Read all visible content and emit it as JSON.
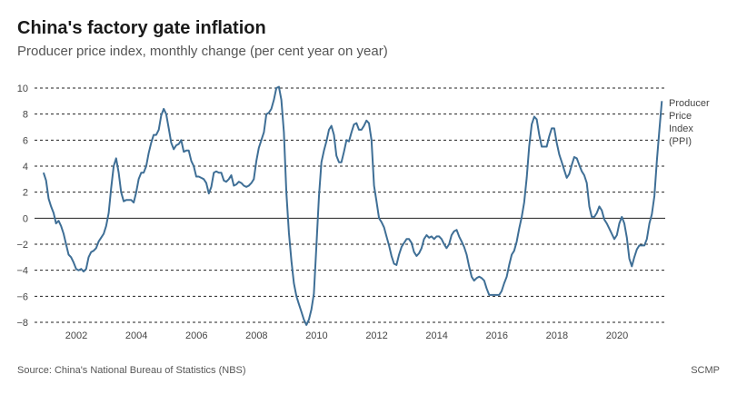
{
  "header": {
    "title": "China's factory gate inflation",
    "subtitle": "Producer price index, monthly change (per cent year on year)"
  },
  "footer": {
    "source": "Source: China's National Bureau of Statistics (NBS)",
    "credit": "SCMP"
  },
  "chart_data": {
    "type": "line",
    "title": "China's factory gate inflation",
    "subtitle": "Producer price index, monthly change (per cent year on year)",
    "xlabel": "",
    "ylabel": "",
    "ylim": [
      -8,
      10
    ],
    "xlim": [
      2001.0,
      2021.33
    ],
    "yticks": [
      10,
      8,
      6,
      4,
      2,
      0,
      -2,
      -4,
      -6,
      -8
    ],
    "ytick_labels": [
      "10",
      "8",
      "6",
      "4",
      "2",
      "0",
      "−2",
      "−4",
      "−6",
      "−8"
    ],
    "xticks": [
      2002,
      2004,
      2006,
      2008,
      2010,
      2012,
      2014,
      2016,
      2018,
      2020
    ],
    "xtick_labels": [
      "2002",
      "2004",
      "2006",
      "2008",
      "2010",
      "2012",
      "2014",
      "2016",
      "2018",
      "2020"
    ],
    "grid": "horizontal-dashed",
    "line_color": "#3f6f96",
    "x_start": "2001-01",
    "frequency": "monthly",
    "series": [
      {
        "name": "Producer Price Index (PPI)",
        "legend_lines": [
          "Producer",
          "Price",
          "Index",
          "(PPI)"
        ],
        "legend_placement": "right-end",
        "values": [
          3.5,
          2.9,
          1.5,
          0.9,
          0.4,
          -0.4,
          -0.2,
          -0.6,
          -1.2,
          -2.0,
          -2.8,
          -3.0,
          -3.4,
          -3.9,
          -4.0,
          -3.9,
          -4.1,
          -3.9,
          -3.0,
          -2.6,
          -2.5,
          -2.3,
          -1.8,
          -1.5,
          -1.2,
          -0.6,
          0.4,
          2.3,
          4.0,
          4.6,
          3.5,
          2.0,
          1.3,
          1.4,
          1.4,
          1.4,
          1.2,
          2.0,
          3.0,
          3.5,
          3.5,
          4.0,
          5.0,
          5.8,
          6.4,
          6.4,
          6.8,
          7.9,
          8.4,
          8.0,
          6.9,
          5.8,
          5.3,
          5.6,
          5.7,
          6.0,
          5.1,
          5.2,
          5.2,
          4.4,
          4.0,
          3.2,
          3.2,
          3.1,
          3.0,
          2.7,
          1.9,
          2.4,
          3.5,
          3.6,
          3.5,
          3.5,
          2.9,
          2.8,
          3.0,
          3.3,
          2.5,
          2.6,
          2.8,
          2.7,
          2.5,
          2.4,
          2.5,
          2.7,
          3.0,
          4.4,
          5.4,
          6.0,
          6.6,
          8.0,
          8.1,
          8.4,
          9.1,
          10.0,
          10.1,
          9.1,
          6.6,
          2.0,
          -1.1,
          -3.3,
          -5.0,
          -6.0,
          -6.6,
          -7.2,
          -7.8,
          -8.2,
          -7.8,
          -7.0,
          -5.8,
          -2.1,
          1.7,
          4.3,
          5.2,
          5.9,
          6.8,
          7.1,
          6.4,
          4.8,
          4.3,
          4.3,
          5.1,
          6.0,
          5.9,
          6.6,
          7.2,
          7.3,
          6.8,
          6.8,
          7.1,
          7.5,
          7.3,
          6.0,
          2.5,
          1.3,
          0.0,
          -0.3,
          -0.7,
          -1.4,
          -2.1,
          -2.9,
          -3.5,
          -3.6,
          -2.8,
          -2.2,
          -1.9,
          -1.6,
          -1.6,
          -1.9,
          -2.6,
          -2.9,
          -2.7,
          -2.3,
          -1.6,
          -1.3,
          -1.5,
          -1.4,
          -1.6,
          -1.4,
          -1.4,
          -1.6,
          -2.0,
          -2.3,
          -2.0,
          -1.3,
          -1.0,
          -0.9,
          -1.4,
          -1.8,
          -2.2,
          -2.8,
          -3.7,
          -4.5,
          -4.8,
          -4.6,
          -4.5,
          -4.6,
          -4.8,
          -5.4,
          -5.9,
          -5.9,
          -5.9,
          -5.9,
          -5.9,
          -5.6,
          -5.0,
          -4.5,
          -3.6,
          -2.8,
          -2.5,
          -1.8,
          -0.8,
          0.1,
          1.2,
          3.1,
          5.5,
          7.2,
          7.8,
          7.6,
          6.4,
          5.5,
          5.5,
          5.5,
          6.3,
          6.9,
          6.9,
          5.8,
          4.9,
          4.3,
          3.7,
          3.1,
          3.4,
          4.1,
          4.7,
          4.6,
          4.1,
          3.6,
          3.3,
          2.7,
          0.9,
          0.1,
          0.1,
          0.4,
          0.9,
          0.6,
          -0.1,
          -0.4,
          -0.8,
          -1.2,
          -1.6,
          -1.3,
          -0.4,
          0.1,
          -0.4,
          -1.5,
          -3.1,
          -3.7,
          -3.0,
          -2.4,
          -2.1,
          -2.1,
          -2.1,
          -1.6,
          -0.4,
          0.3,
          1.7,
          4.4,
          6.8,
          9.0
        ]
      }
    ]
  }
}
